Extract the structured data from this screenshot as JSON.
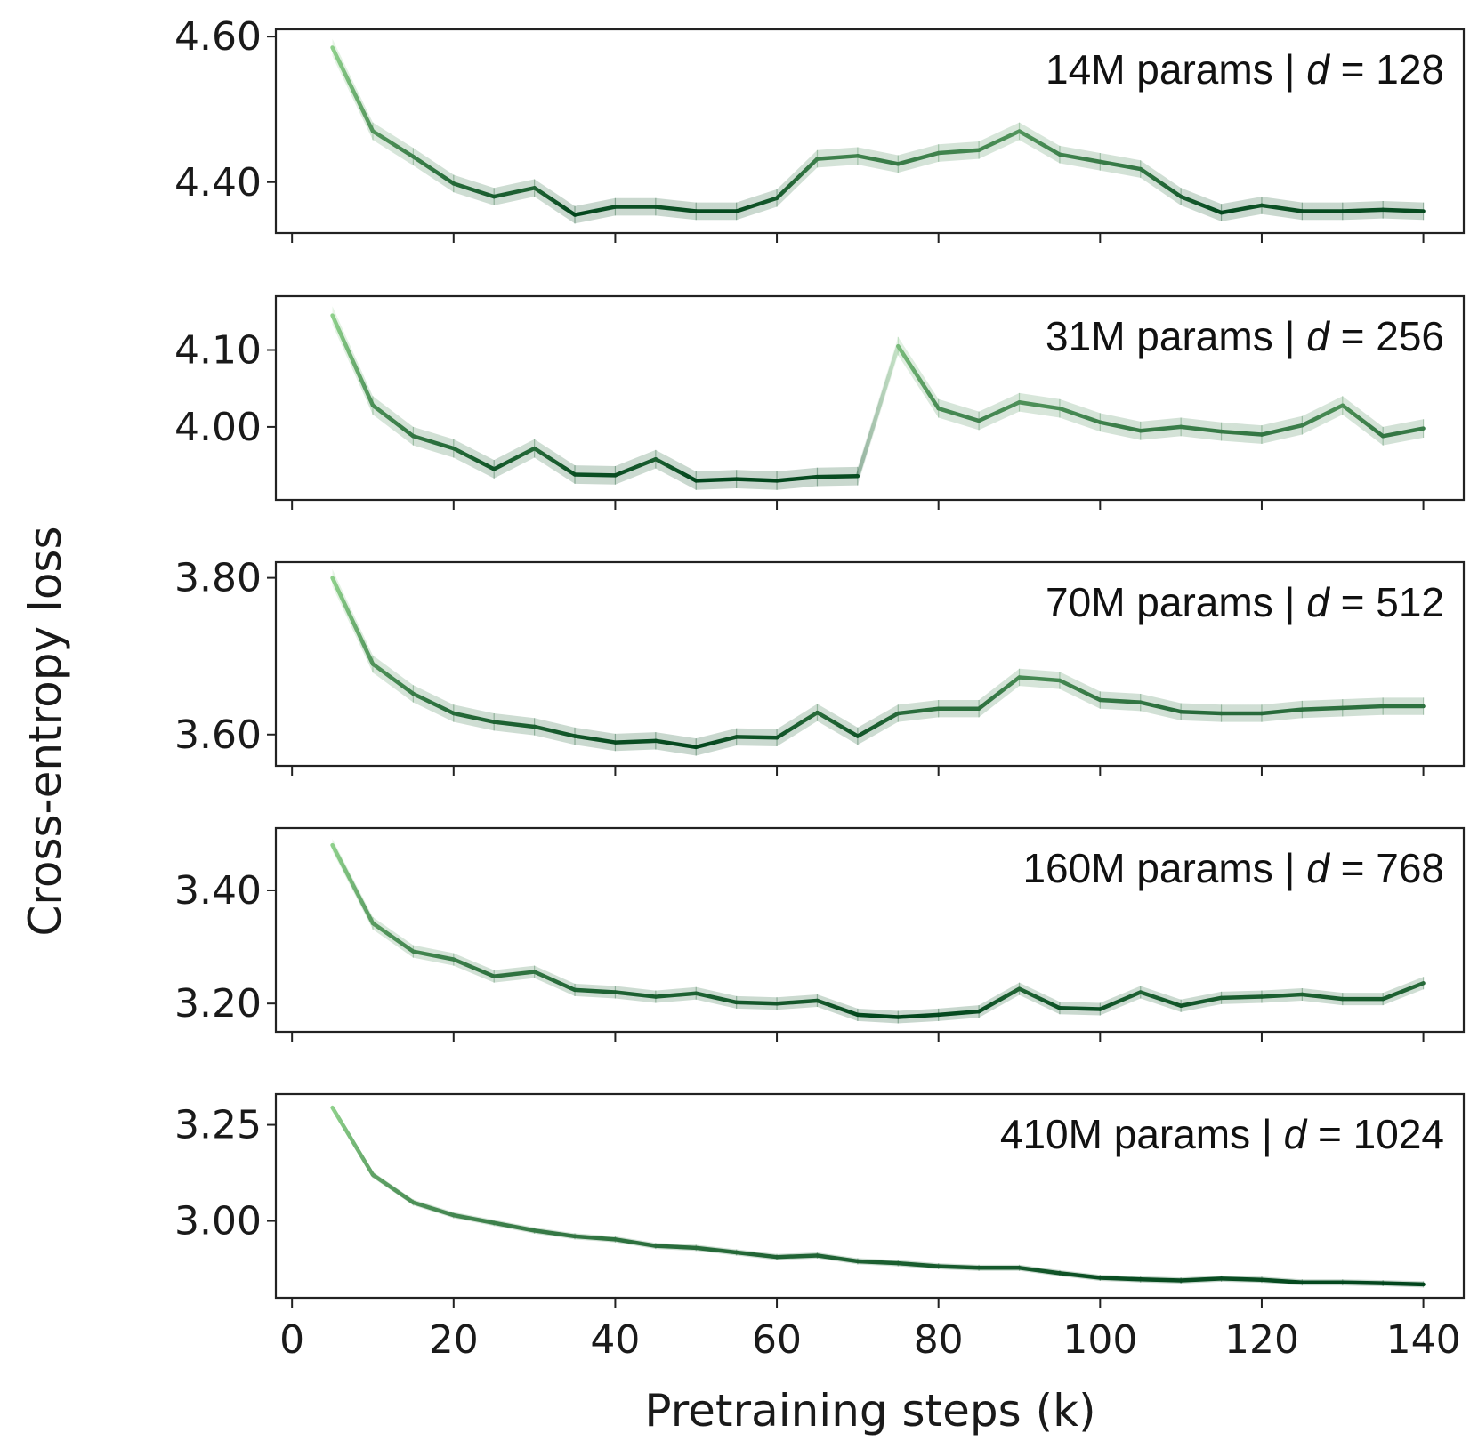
{
  "chart_data": {
    "type": "line",
    "xlabel": "Pretraining steps (k)",
    "ylabel": "Cross-entropy loss",
    "xlim": [
      -2,
      145
    ],
    "x_ticks": [
      0,
      20,
      40,
      60,
      80,
      100,
      120,
      140
    ],
    "x_tick_labels": [
      "0",
      "20",
      "40",
      "60",
      "80",
      "100",
      "120",
      "140"
    ],
    "x": [
      5,
      10,
      15,
      20,
      25,
      30,
      35,
      40,
      45,
      50,
      55,
      60,
      65,
      70,
      75,
      80,
      85,
      90,
      95,
      100,
      105,
      110,
      115,
      120,
      125,
      130,
      135,
      140
    ],
    "colors": {
      "light": "#8ed08b",
      "dark": "#00441b"
    },
    "panels": [
      {
        "label_main": "14M params | ",
        "label_var": "d",
        "label_tail": " = 128",
        "ylim": [
          4.33,
          4.61
        ],
        "y_ticks": [
          4.4,
          4.6
        ],
        "y_tick_labels": [
          "4.40",
          "4.60"
        ],
        "values": [
          4.585,
          4.47,
          4.435,
          4.398,
          4.38,
          4.392,
          4.355,
          4.366,
          4.366,
          4.36,
          4.36,
          4.378,
          4.432,
          4.436,
          4.425,
          4.44,
          4.444,
          4.47,
          4.438,
          4.428,
          4.418,
          4.38,
          4.358,
          4.368,
          4.36,
          4.36,
          4.362,
          4.36
        ],
        "band": 0.012
      },
      {
        "label_main": "31M params | ",
        "label_var": "d",
        "label_tail": " = 256",
        "ylim": [
          3.905,
          4.17
        ],
        "y_ticks": [
          4.0,
          4.1
        ],
        "y_tick_labels": [
          "4.00",
          "4.10"
        ],
        "values": [
          4.145,
          4.028,
          3.988,
          3.972,
          3.945,
          3.972,
          3.938,
          3.937,
          3.958,
          3.93,
          3.932,
          3.93,
          3.935,
          3.936,
          4.105,
          4.024,
          4.008,
          4.032,
          4.024,
          4.006,
          3.995,
          4.0,
          3.994,
          3.99,
          4.002,
          4.028,
          3.988,
          3.998
        ],
        "band": 0.012,
        "gap_after_index": 13
      },
      {
        "label_main": "70M params | ",
        "label_var": "d",
        "label_tail": " = 512",
        "ylim": [
          3.56,
          3.82
        ],
        "y_ticks": [
          3.6,
          3.8
        ],
        "y_tick_labels": [
          "3.60",
          "3.80"
        ],
        "values": [
          3.8,
          3.69,
          3.652,
          3.627,
          3.616,
          3.61,
          3.598,
          3.59,
          3.592,
          3.584,
          3.597,
          3.596,
          3.628,
          3.598,
          3.627,
          3.633,
          3.633,
          3.673,
          3.669,
          3.644,
          3.641,
          3.629,
          3.627,
          3.627,
          3.632,
          3.634,
          3.636,
          3.636
        ],
        "band": 0.011
      },
      {
        "label_main": "160M params | ",
        "label_var": "d",
        "label_tail": " = 768",
        "ylim": [
          3.15,
          3.51
        ],
        "y_ticks": [
          3.2,
          3.4
        ],
        "y_tick_labels": [
          "3.20",
          "3.40"
        ],
        "values": [
          3.48,
          3.342,
          3.292,
          3.278,
          3.248,
          3.256,
          3.224,
          3.22,
          3.212,
          3.218,
          3.202,
          3.2,
          3.205,
          3.18,
          3.176,
          3.18,
          3.186,
          3.226,
          3.192,
          3.19,
          3.22,
          3.196,
          3.21,
          3.212,
          3.216,
          3.208,
          3.208,
          3.236
        ],
        "band": 0.011
      },
      {
        "label_main": "410M params | ",
        "label_var": "d",
        "label_tail": " = 1024",
        "ylim": [
          2.8,
          3.33
        ],
        "y_ticks": [
          3.0,
          3.25
        ],
        "y_tick_labels": [
          "3.00",
          "3.25"
        ],
        "values": [
          3.295,
          3.12,
          3.048,
          3.015,
          2.995,
          2.975,
          2.96,
          2.952,
          2.935,
          2.93,
          2.918,
          2.906,
          2.91,
          2.895,
          2.89,
          2.882,
          2.878,
          2.878,
          2.864,
          2.852,
          2.848,
          2.845,
          2.85,
          2.847,
          2.84,
          2.84,
          2.838,
          2.835
        ],
        "band": 0.008
      }
    ]
  }
}
